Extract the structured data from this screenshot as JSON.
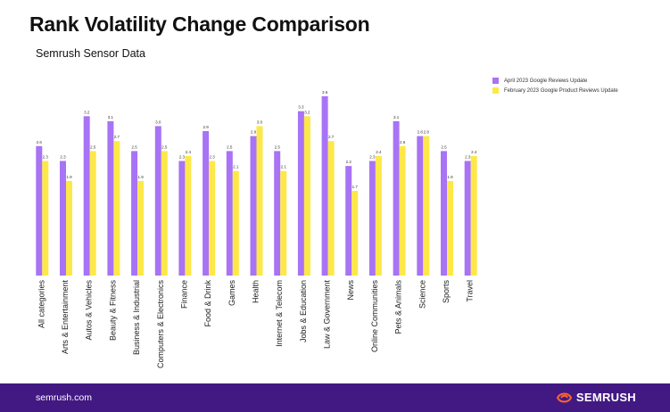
{
  "colors": {
    "series_a": "#A873F5",
    "series_b": "#FDE849",
    "footer_bg": "#421983",
    "brand_orange": "#FF642D"
  },
  "header": {
    "title": "Rank Volatility Change Comparison",
    "subtitle": "Semrush Sensor Data"
  },
  "footer": {
    "url": "semrush.com",
    "brand": "SEMRUSH",
    "brand_icon": "semrush-flame-icon"
  },
  "chart_data": {
    "type": "bar",
    "title": "Rank Volatility Change Comparison",
    "subtitle": "Semrush Sensor Data",
    "xlabel": "",
    "ylabel": "",
    "ylim": [
      0,
      4.1
    ],
    "grid": false,
    "legend_position": "top-right",
    "categories": [
      "All categories",
      "Arts & Entertainment",
      "Autos & Vehicles",
      "Beauty & Fitness",
      "Business & Industrial",
      "Computers & Electronics",
      "Finance",
      "Food & Drink",
      "Games",
      "Health",
      "Internet & Telecom",
      "Jobs & Education",
      "Law & Government",
      "News",
      "Online Communities",
      "Pets & Animals",
      "Science",
      "Sports",
      "Travel"
    ],
    "series": [
      {
        "name": "April 2023 Google Reviews Update",
        "values": [
          2.6,
          2.3,
          3.2,
          3.1,
          2.5,
          3.0,
          2.3,
          2.9,
          2.5,
          2.8,
          2.5,
          3.3,
          3.6,
          2.2,
          2.3,
          3.1,
          2.8,
          2.5,
          2.3
        ]
      },
      {
        "name": "February 2023 Google Product Reviews Update",
        "values": [
          2.3,
          1.9,
          2.5,
          2.7,
          1.9,
          2.5,
          2.4,
          2.3,
          2.1,
          3.0,
          2.1,
          3.2,
          2.7,
          1.7,
          2.4,
          2.6,
          2.8,
          1.9,
          2.4
        ]
      }
    ]
  }
}
